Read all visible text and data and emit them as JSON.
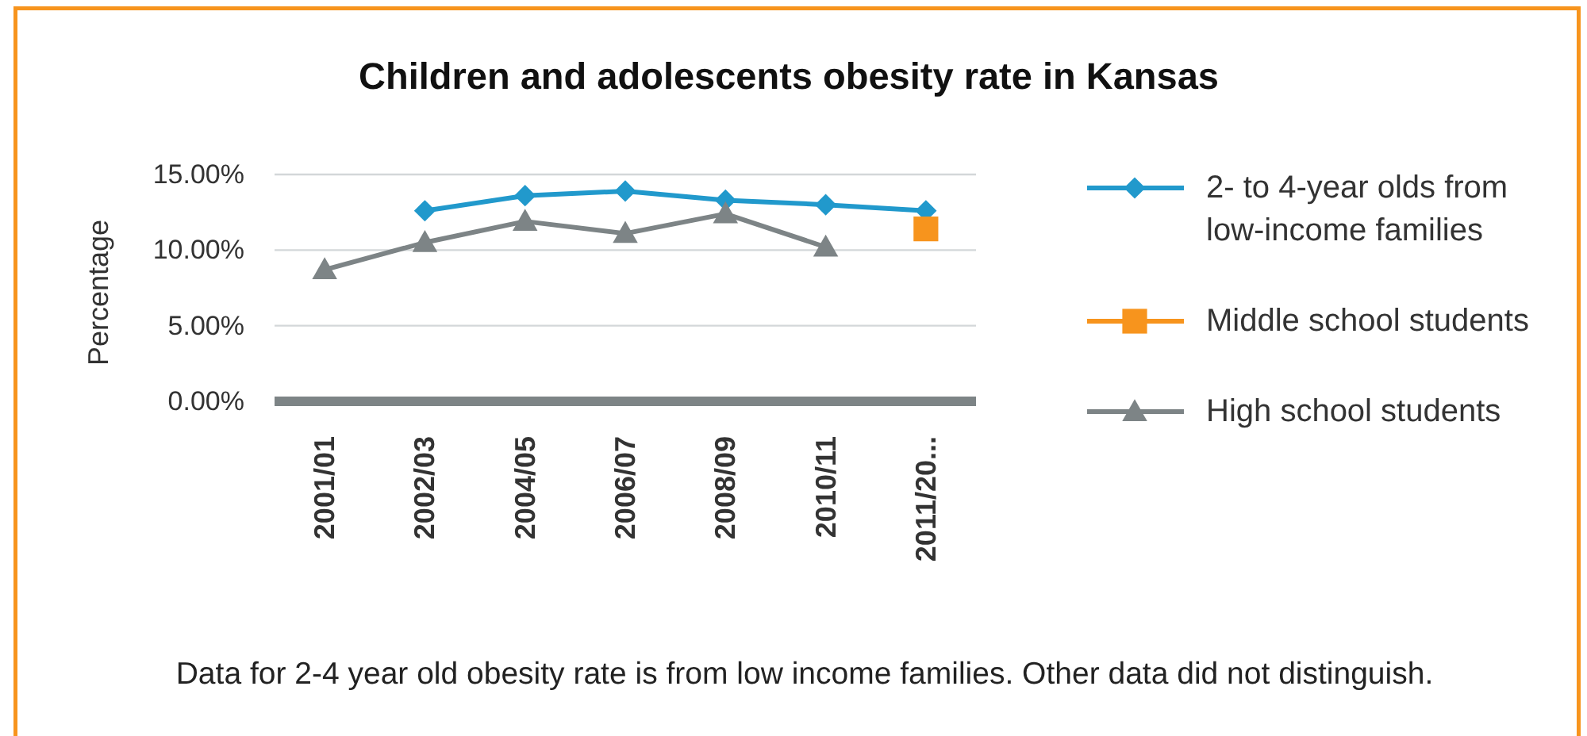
{
  "chart_data": {
    "type": "line",
    "title": "Children and adolescents obesity rate in Kansas",
    "ylabel": "Percentage",
    "annotations": [
      "Data for 2-4 year old obesity rate is from low income families. Other data did not distinguish."
    ],
    "categories": [
      "2001/01",
      "2002/03",
      "2004/05",
      "2006/07",
      "2008/09",
      "2010/11",
      "2011/20..."
    ],
    "series": [
      {
        "name": "2- to 4-year olds from low-income families",
        "color": "#2199cc",
        "marker": "diamond",
        "values": [
          null,
          12.6,
          13.6,
          13.9,
          13.3,
          13.0,
          12.6
        ]
      },
      {
        "name": "Middle school students",
        "color": "#f7941d",
        "marker": "square",
        "values": [
          null,
          null,
          null,
          null,
          null,
          null,
          11.4
        ]
      },
      {
        "name": "High school students",
        "color": "#7d8486",
        "marker": "triangle",
        "values": [
          8.7,
          10.5,
          11.9,
          11.1,
          12.4,
          10.2,
          null
        ]
      }
    ],
    "ylim": [
      0,
      15
    ],
    "yticks": [
      {
        "value": 0,
        "label": "0.00%"
      },
      {
        "value": 5,
        "label": "5.00%"
      },
      {
        "value": 10,
        "label": "10.00%"
      },
      {
        "value": 15,
        "label": "15.00%"
      }
    ],
    "grid": "y",
    "legend": "right"
  }
}
